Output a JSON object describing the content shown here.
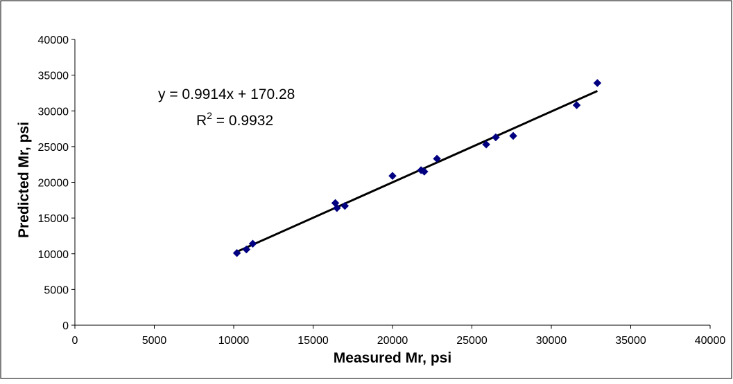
{
  "chart_data": {
    "type": "scatter",
    "xlabel": "Measured Mr, psi",
    "ylabel": "Predicted Mr, psi",
    "xlim": [
      0,
      40000
    ],
    "ylim": [
      0,
      40000
    ],
    "xticks": [
      "0",
      "5000",
      "10000",
      "15000",
      "20000",
      "25000",
      "30000",
      "35000",
      "40000"
    ],
    "yticks": [
      "0",
      "5000",
      "10000",
      "15000",
      "20000",
      "25000",
      "30000",
      "35000",
      "40000"
    ],
    "grid": false,
    "legend": "none",
    "colors": {
      "points": "#000080",
      "trendline": "#000000",
      "frame": "#000000"
    },
    "points": [
      [
        10200,
        10100
      ],
      [
        10800,
        10600
      ],
      [
        11200,
        11400
      ],
      [
        16400,
        17100
      ],
      [
        16500,
        16400
      ],
      [
        17000,
        16700
      ],
      [
        20000,
        20900
      ],
      [
        21800,
        21700
      ],
      [
        22000,
        21500
      ],
      [
        22800,
        23300
      ],
      [
        25900,
        25300
      ],
      [
        26500,
        26300
      ],
      [
        27600,
        26500
      ],
      [
        31600,
        30800
      ],
      [
        32900,
        33900
      ]
    ],
    "trendline": {
      "slope": 0.9914,
      "intercept": 170.28,
      "x_range": [
        10200,
        32900
      ]
    },
    "annotation": {
      "equation": "y = 0.9914x + 170.28",
      "r2_prefix": "R",
      "r2_sup": "2",
      "r2_value": " = 0.9932"
    }
  }
}
